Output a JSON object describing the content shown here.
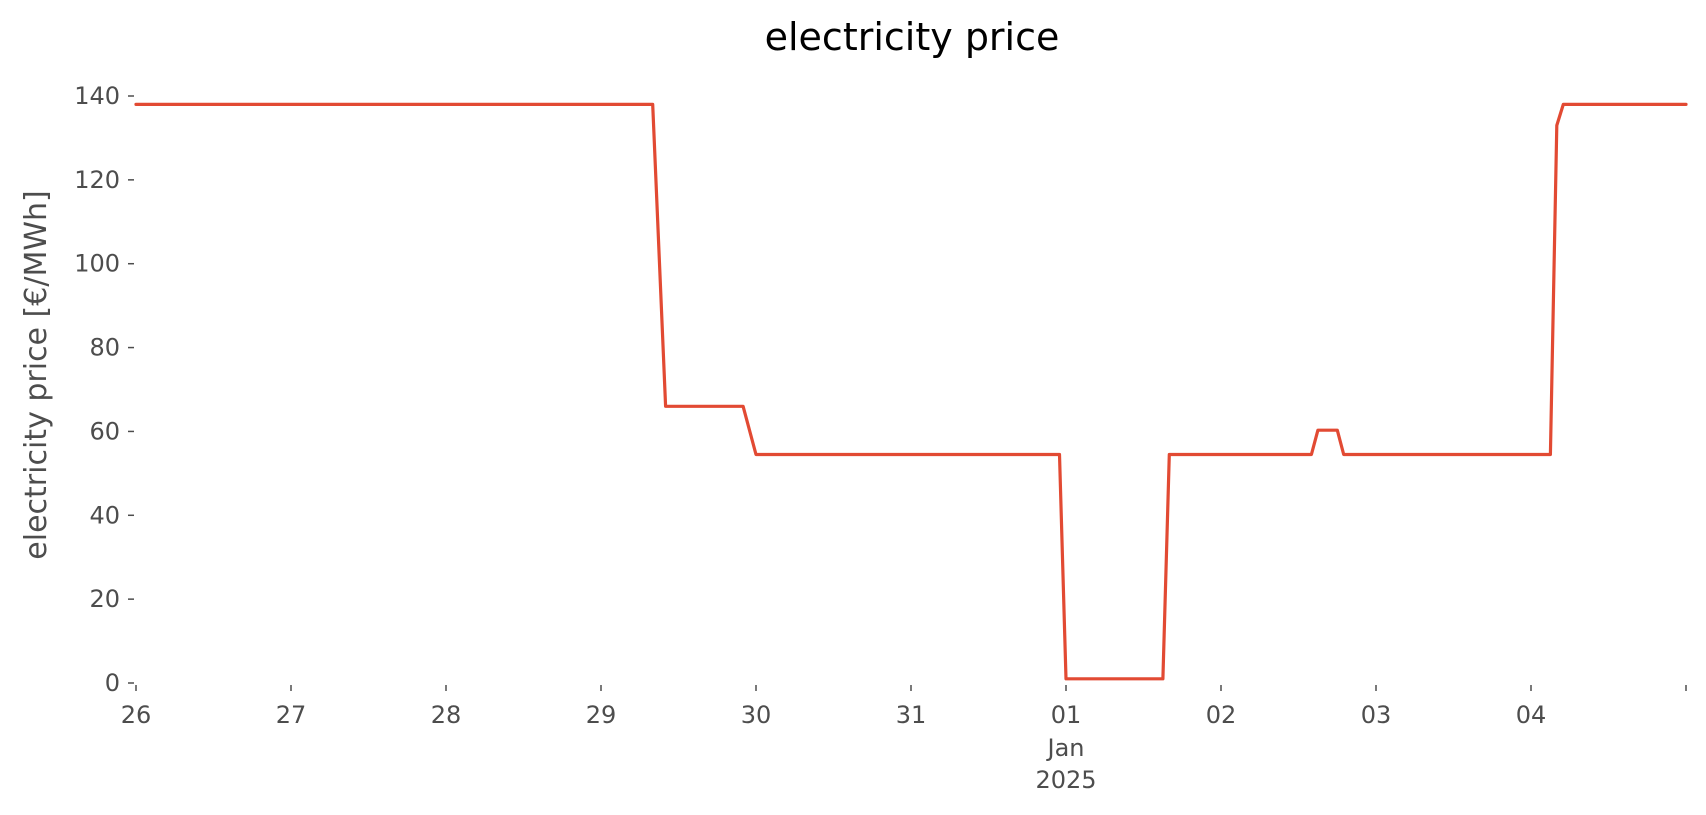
{
  "chart_data": {
    "type": "line",
    "title": "electricity price",
    "xlabel": "",
    "ylabel": "electricity price [€/MWh]",
    "x_ticks": [
      "26",
      "27",
      "28",
      "29",
      "30",
      "31",
      "01",
      "02",
      "03",
      "04"
    ],
    "x_tick_sublabel": {
      "tick": "01",
      "lines": [
        "Jan",
        "2025"
      ]
    },
    "y_ticks": [
      0,
      20,
      40,
      60,
      80,
      100,
      120,
      140
    ],
    "xlim": [
      "2024-12-26 00:00",
      "2025-01-05 00:00"
    ],
    "ylim": [
      0,
      140
    ],
    "grid": false,
    "color": "#e24a33",
    "x": [
      "2024-12-26 00:00",
      "2024-12-29 08:00",
      "2024-12-29 10:00",
      "2024-12-29 22:00",
      "2024-12-30 00:00",
      "2024-12-31 23:00",
      "2025-01-01 00:00",
      "2025-01-01 15:00",
      "2025-01-01 16:00",
      "2025-01-02 14:00",
      "2025-01-02 15:00",
      "2025-01-02 18:00",
      "2025-01-02 19:00",
      "2025-01-04 03:00",
      "2025-01-04 04:00",
      "2025-01-04 05:00",
      "2025-01-05 00:00"
    ],
    "y": [
      138,
      138,
      66,
      66,
      54.5,
      54.5,
      1,
      1,
      54.5,
      54.5,
      60.3,
      60.3,
      54.5,
      54.5,
      133,
      138,
      138
    ]
  }
}
